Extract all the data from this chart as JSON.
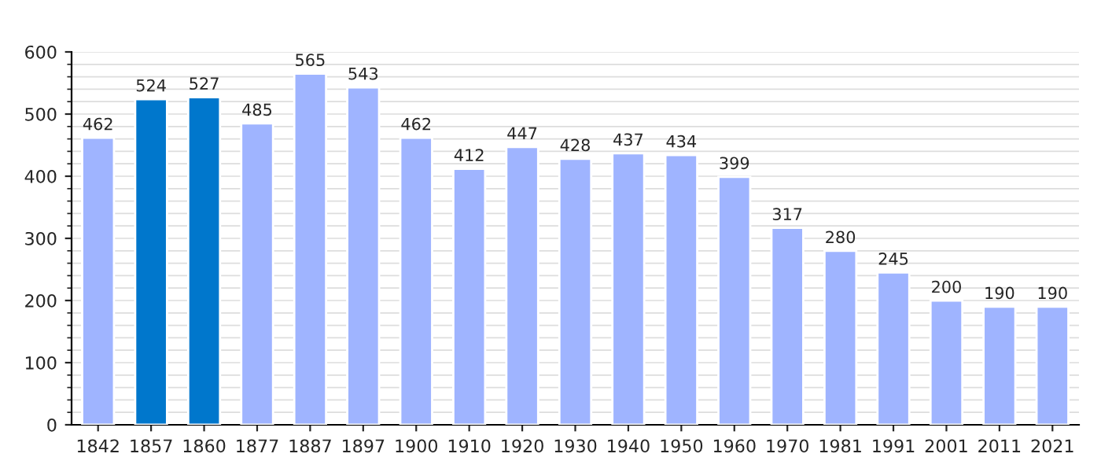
{
  "chart_data": {
    "type": "bar",
    "categories": [
      "1842",
      "1857",
      "1860",
      "1877",
      "1887",
      "1897",
      "1900",
      "1910",
      "1920",
      "1930",
      "1940",
      "1950",
      "1960",
      "1970",
      "1981",
      "1991",
      "2001",
      "2011",
      "2021"
    ],
    "values": [
      462,
      524,
      527,
      485,
      565,
      543,
      462,
      412,
      447,
      428,
      437,
      434,
      399,
      317,
      280,
      245,
      200,
      190,
      190
    ],
    "colors": [
      "#9fb4ff",
      "#0077cc",
      "#0077cc",
      "#9fb4ff",
      "#9fb4ff",
      "#9fb4ff",
      "#9fb4ff",
      "#9fb4ff",
      "#9fb4ff",
      "#9fb4ff",
      "#9fb4ff",
      "#9fb4ff",
      "#9fb4ff",
      "#9fb4ff",
      "#9fb4ff",
      "#9fb4ff",
      "#9fb4ff",
      "#9fb4ff",
      "#9fb4ff"
    ],
    "ylim": [
      0,
      600
    ],
    "yticks": [
      0,
      100,
      200,
      300,
      400,
      500,
      600
    ],
    "grid": "y",
    "data_labels": true
  }
}
